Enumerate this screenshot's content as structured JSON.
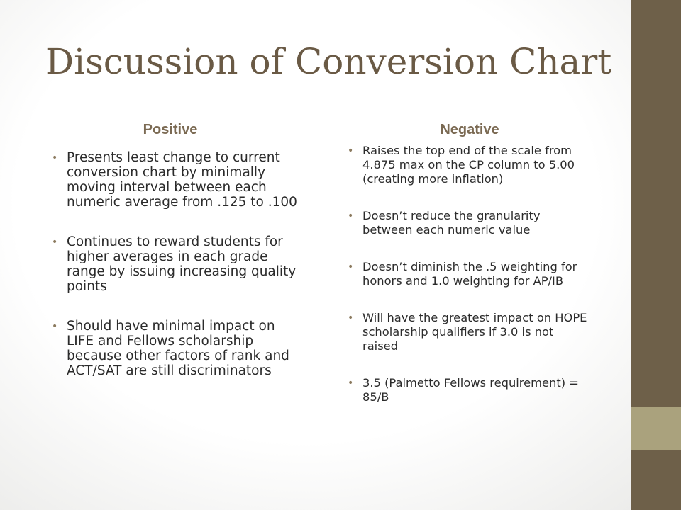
{
  "slide": {
    "title": "Discussion of Conversion Chart",
    "colors": {
      "title": "#6a5a45",
      "heading": "#7b6a53",
      "body_text": "#2b2b2b",
      "bullet": "#8b7a5e",
      "side_band": "#6e6049",
      "side_band_accent": "#aaa27d"
    },
    "positive": {
      "heading": "Positive",
      "items": [
        "Presents least change to current conversion chart by minimally moving interval between each numeric average from .125 to .100",
        "Continues to reward students for higher averages in each grade range by issuing increasing quality points",
        "Should have minimal impact on LIFE and Fellows scholarship because other factors of rank and ACT/SAT are still discriminators"
      ]
    },
    "negative": {
      "heading": "Negative",
      "items": [
        "Raises the top end of the scale from 4.875 max on the CP column to 5.00  (creating more inflation)",
        "Doesn’t reduce the granularity between each numeric value",
        "Doesn’t diminish the .5 weighting for honors and 1.0 weighting for AP/IB",
        "Will have the greatest impact on HOPE scholarship qualifiers if 3.0 is not raised",
        "3.5 (Palmetto Fellows requirement) = 85/B"
      ]
    },
    "bullet_glyph": "•"
  }
}
